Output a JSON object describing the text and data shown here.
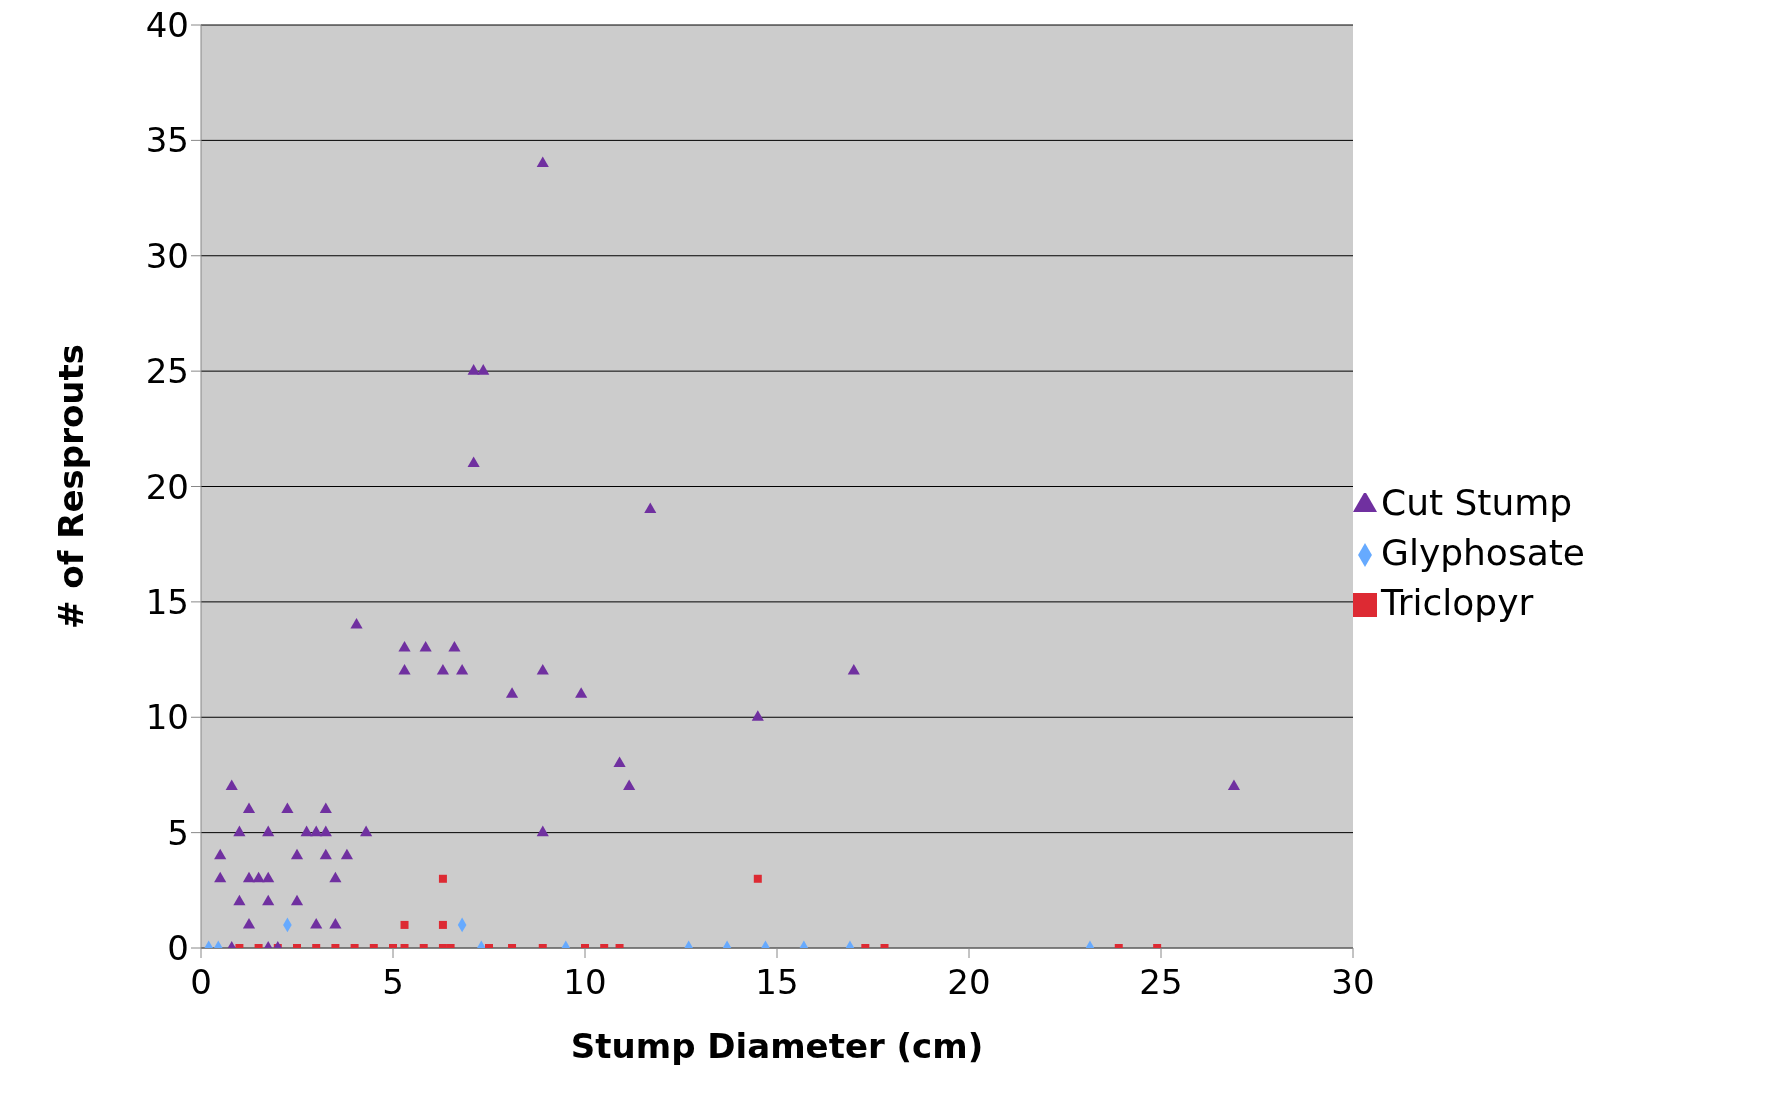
{
  "chart_data": {
    "type": "scatter",
    "xlabel": "Stump Diameter (cm)",
    "ylabel": "# of Resprouts",
    "xlim": [
      0,
      30
    ],
    "xticks": [
      0,
      5,
      10,
      15,
      20,
      25,
      30
    ],
    "ylim": [
      0,
      40
    ],
    "yticks": [
      0,
      5,
      10,
      15,
      20,
      25,
      30,
      35,
      40
    ],
    "grid": "y",
    "legend": "right",
    "series": [
      {
        "name": "Glyphosate",
        "color": "#66aaff",
        "marker": "diamond",
        "x": [
          0.2,
          0.45,
          2.25,
          6.8,
          7.3,
          9.5,
          12.7,
          13.7,
          14.7,
          15.7,
          16.9,
          23.15
        ],
        "values": [
          0,
          0,
          1,
          1,
          0,
          0,
          0,
          0,
          0,
          0,
          0,
          0
        ]
      },
      {
        "name": "Triclopyr",
        "color": "#dd2a33",
        "marker": "square",
        "x": [
          1,
          1.5,
          2,
          2.5,
          3,
          3.5,
          4,
          4.5,
          5,
          5.3,
          5.8,
          6.3,
          6.5,
          5.3,
          6.3,
          6.3,
          14.5,
          7.5,
          8.1,
          8.9,
          10,
          10.5,
          10.9,
          17.3,
          17.8,
          23.9,
          24.9
        ],
        "values": [
          0,
          0,
          0,
          0,
          0,
          0,
          0,
          0,
          0,
          0,
          0,
          0,
          0,
          1,
          1,
          3,
          3,
          0,
          0,
          0,
          0,
          0,
          0,
          0,
          0,
          0,
          0
        ]
      },
      {
        "name": "Cut Stump",
        "color": "#7030a0",
        "marker": "triangle",
        "x": [
          0.5,
          0.5,
          0.8,
          1,
          1,
          1.25,
          1.25,
          1.25,
          1.5,
          1.75,
          1.75,
          1.75,
          2.25,
          2.5,
          2.5,
          2.75,
          3,
          3.25,
          3.25,
          3.25,
          3,
          3.5,
          3.5,
          3.8,
          4.3,
          4.05,
          5.3,
          5.3,
          5.85,
          6.3,
          6.6,
          6.8,
          7.1,
          7.35,
          7.1,
          8.1,
          8.9,
          8.9,
          8.9,
          9.9,
          10.9,
          11.15,
          11.7,
          14.5,
          17,
          26.9,
          0.8,
          1.75,
          2
        ],
        "values": [
          3,
          4,
          7,
          5,
          2,
          6,
          3,
          1,
          3,
          3,
          5,
          2,
          6,
          4,
          2,
          5,
          5,
          6,
          5,
          4,
          1,
          3,
          1,
          4,
          5,
          14,
          13,
          12,
          13,
          12,
          13,
          12,
          25,
          25,
          21,
          11,
          34,
          12,
          5,
          11,
          8,
          7,
          19,
          10,
          12,
          7,
          0,
          0,
          0
        ]
      }
    ]
  }
}
